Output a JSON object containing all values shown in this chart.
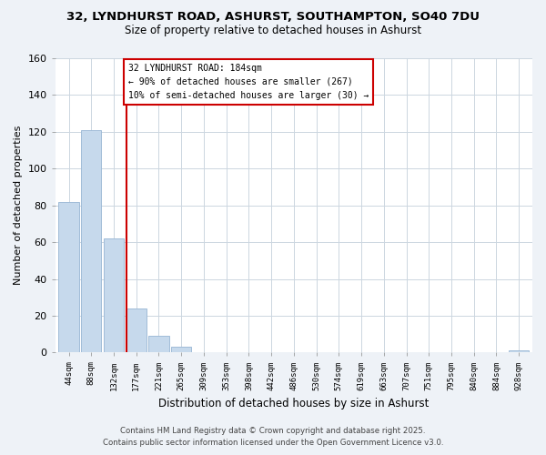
{
  "title_line1": "32, LYNDHURST ROAD, ASHURST, SOUTHAMPTON, SO40 7DU",
  "title_line2": "Size of property relative to detached houses in Ashurst",
  "xlabel": "Distribution of detached houses by size in Ashurst",
  "ylabel": "Number of detached properties",
  "bar_labels": [
    "44sqm",
    "88sqm",
    "132sqm",
    "177sqm",
    "221sqm",
    "265sqm",
    "309sqm",
    "353sqm",
    "398sqm",
    "442sqm",
    "486sqm",
    "530sqm",
    "574sqm",
    "619sqm",
    "663sqm",
    "707sqm",
    "751sqm",
    "795sqm",
    "840sqm",
    "884sqm",
    "928sqm"
  ],
  "bar_values": [
    82,
    121,
    62,
    24,
    9,
    3,
    0,
    0,
    0,
    0,
    0,
    0,
    0,
    0,
    0,
    0,
    0,
    0,
    0,
    0,
    1
  ],
  "bar_color": "#c6d9ec",
  "bar_edge_color": "#a0bcd8",
  "vline_color": "#cc0000",
  "annotation_text": "32 LYNDHURST ROAD: 184sqm\n← 90% of detached houses are smaller (267)\n10% of semi-detached houses are larger (30) →",
  "annotation_box_color": "#ffffff",
  "annotation_box_edge_color": "#cc0000",
  "ylim": [
    0,
    160
  ],
  "yticks": [
    0,
    20,
    40,
    60,
    80,
    100,
    120,
    140,
    160
  ],
  "footer_line1": "Contains HM Land Registry data © Crown copyright and database right 2025.",
  "footer_line2": "Contains public sector information licensed under the Open Government Licence v3.0.",
  "bg_color": "#eef2f7",
  "plot_bg_color": "#ffffff",
  "grid_color": "#ccd6e0"
}
